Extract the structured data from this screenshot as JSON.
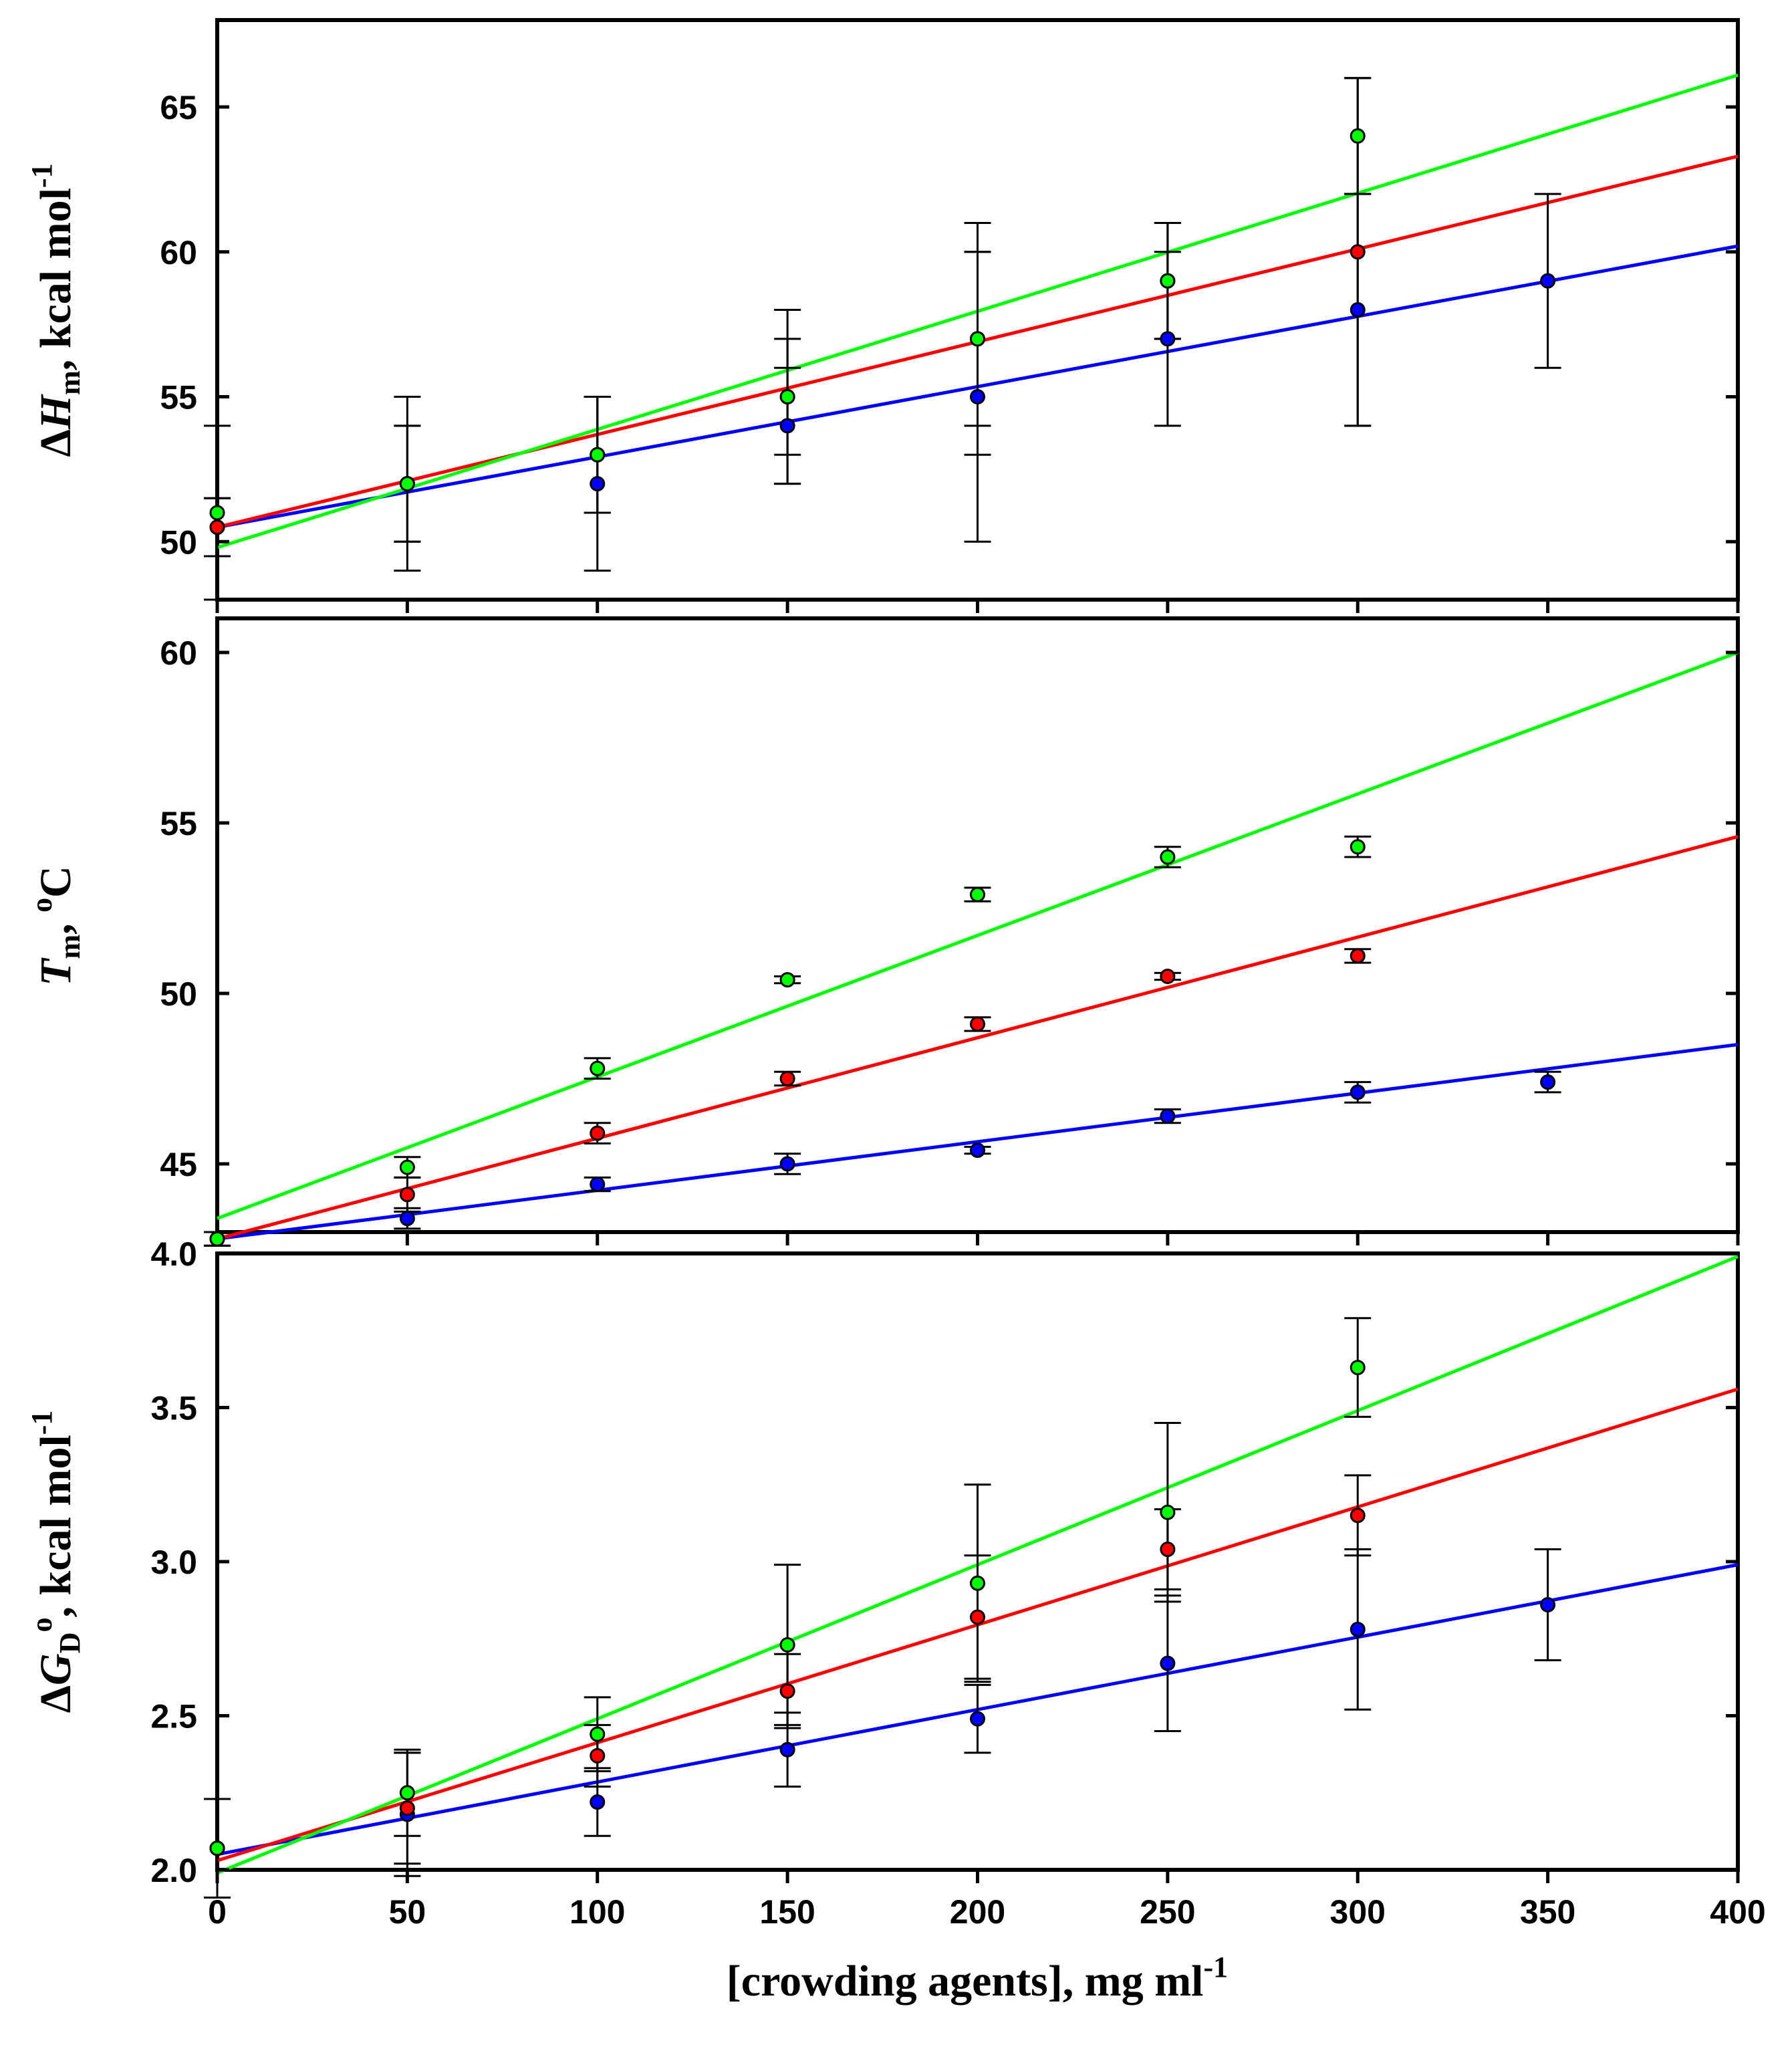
{
  "chart_data": [
    {
      "type": "scatter",
      "panel": "top",
      "ylabel_parts": {
        "prefix": "Δ",
        "symbol": "H",
        "sub": "m",
        "rest": ", kcal mol",
        "sup": "-1"
      },
      "ylim": [
        48,
        68
      ],
      "xlim": [
        0,
        400
      ],
      "yticks": [
        "50",
        "55",
        "60",
        "65"
      ],
      "series": [
        {
          "name": "blue",
          "color": "#0000ff",
          "x": [
            0,
            50,
            100,
            150,
            200,
            250,
            300,
            350
          ],
          "y": [
            50.5,
            52,
            52,
            54,
            55,
            57,
            58,
            59
          ],
          "err": [
            1,
            2,
            3,
            2,
            5,
            3,
            4,
            3
          ],
          "fit": [
            50.5,
            60.2
          ]
        },
        {
          "name": "red",
          "color": "#ff0000",
          "x": [
            0,
            50,
            100,
            150,
            200,
            250,
            300
          ],
          "y": [
            50.5,
            52,
            53,
            55,
            57,
            59,
            60
          ],
          "err": [
            1,
            2,
            2,
            2,
            3,
            2,
            6
          ],
          "fit": [
            50.5,
            63.3
          ]
        },
        {
          "name": "green",
          "color": "#00ff00",
          "x": [
            0,
            50,
            100,
            150,
            200,
            250,
            300
          ],
          "y": [
            51,
            52,
            53,
            55,
            57,
            59,
            64
          ],
          "err": [
            3,
            3,
            2,
            3,
            4,
            2,
            2
          ],
          "fit": [
            49.8,
            66.1
          ]
        }
      ]
    },
    {
      "type": "scatter",
      "panel": "middle",
      "ylabel_parts": {
        "symbol": "T",
        "sub": "m",
        "rest": ", ",
        "sup": "o",
        "unit": "C"
      },
      "ylim": [
        43,
        61
      ],
      "xlim": [
        0,
        400
      ],
      "yticks": [
        "45",
        "50",
        "55",
        "60"
      ],
      "series": [
        {
          "name": "blue",
          "color": "#0000ff",
          "x": [
            0,
            50,
            100,
            150,
            200,
            250,
            300,
            350
          ],
          "y": [
            42.8,
            43.4,
            44.4,
            45.0,
            45.4,
            46.4,
            47.1,
            47.4
          ],
          "err": [
            0.2,
            0.3,
            0.2,
            0.3,
            0.1,
            0.2,
            0.3,
            0.3
          ],
          "fit": [
            42.8,
            48.5
          ]
        },
        {
          "name": "red",
          "color": "#ff0000",
          "x": [
            0,
            50,
            100,
            150,
            200,
            250,
            300
          ],
          "y": [
            42.8,
            44.1,
            45.9,
            47.5,
            49.1,
            50.5,
            51.1
          ],
          "err": [
            0.2,
            0.5,
            0.3,
            0.2,
            0.2,
            0.1,
            0.2
          ],
          "fit": [
            42.8,
            54.6
          ]
        },
        {
          "name": "green",
          "color": "#00ff00",
          "x": [
            0,
            50,
            100,
            150,
            200,
            250,
            300
          ],
          "y": [
            42.8,
            44.9,
            47.8,
            50.4,
            52.9,
            54.0,
            54.3
          ],
          "err": [
            0.2,
            0.3,
            0.3,
            0.1,
            0.2,
            0.3,
            0.3
          ],
          "fit": [
            43.4,
            60.0
          ]
        }
      ]
    },
    {
      "type": "scatter",
      "panel": "bottom",
      "ylabel_parts": {
        "prefix": "Δ",
        "symbol": "G",
        "sub": "D",
        "sup": "o",
        "rest": ", kcal mol",
        "sup2": "-1"
      },
      "ylim": [
        2.0,
        4.0
      ],
      "xlim": [
        0,
        400
      ],
      "yticks": [
        "2.0",
        "2.5",
        "3.0",
        "3.5",
        "4.0"
      ],
      "xticks": [
        "0",
        "50",
        "100",
        "150",
        "200",
        "250",
        "300",
        "350",
        "400"
      ],
      "xlabel_parts": {
        "rest": "[crowding agents], mg ml",
        "sup": "-1"
      },
      "series": [
        {
          "name": "blue",
          "color": "#0000ff",
          "x": [
            0,
            50,
            100,
            150,
            200,
            250,
            300,
            350
          ],
          "y": [
            2.07,
            2.18,
            2.22,
            2.39,
            2.49,
            2.67,
            2.78,
            2.86
          ],
          "err": [
            0.16,
            0.2,
            0.11,
            0.12,
            0.11,
            0.22,
            0.26,
            0.18
          ],
          "fit": [
            2.05,
            2.99
          ]
        },
        {
          "name": "red",
          "color": "#ff0000",
          "x": [
            0,
            50,
            100,
            150,
            200,
            250,
            300
          ],
          "y": [
            2.07,
            2.2,
            2.37,
            2.58,
            2.82,
            3.04,
            3.15
          ],
          "err": [
            0.16,
            0.18,
            0.1,
            0.12,
            0.2,
            0.13,
            0.13
          ],
          "fit": [
            2.03,
            3.56
          ]
        },
        {
          "name": "green",
          "color": "#00ff00",
          "x": [
            0,
            50,
            100,
            150,
            200,
            250,
            300
          ],
          "y": [
            2.07,
            2.25,
            2.44,
            2.73,
            2.93,
            3.16,
            3.63
          ],
          "err": [
            0.16,
            0.14,
            0.12,
            0.26,
            0.32,
            0.29,
            0.16
          ],
          "fit": [
            1.99,
            3.99
          ]
        }
      ]
    }
  ]
}
